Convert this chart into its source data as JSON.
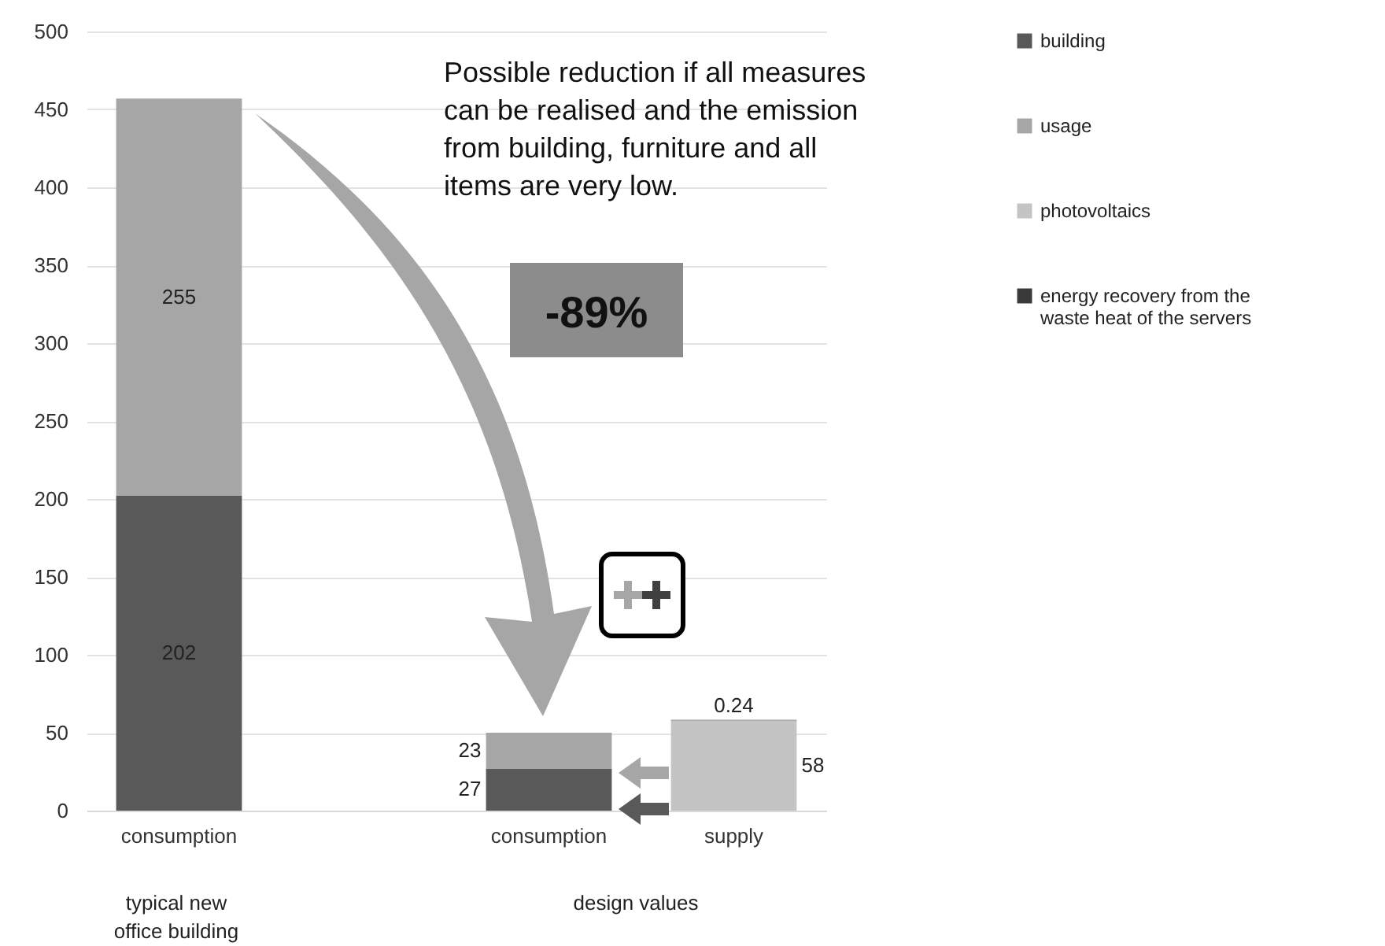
{
  "chart_data": {
    "type": "bar",
    "stacked": true,
    "categories": [
      "consumption",
      null,
      "consumption",
      "supply"
    ],
    "series": [
      {
        "name": "building",
        "color": "#595959",
        "values": [
          202,
          null,
          27,
          null
        ]
      },
      {
        "name": "usage",
        "color": "#a6a6a6",
        "values": [
          255,
          null,
          23,
          null
        ]
      },
      {
        "name": "photovoltaics",
        "color": "#c4c4c4",
        "values": [
          null,
          null,
          null,
          58
        ]
      },
      {
        "name": "energy recovery from the waste heat of the servers",
        "color": "#3a3a3a",
        "values": [
          null,
          null,
          null,
          0.24
        ]
      }
    ],
    "ylim": [
      0,
      500
    ],
    "yticks": [
      0,
      50,
      100,
      150,
      200,
      250,
      300,
      350,
      400,
      450,
      500
    ],
    "grid": "y",
    "legend": "right",
    "data_labels": true,
    "annotations": [
      "Possible reduction if all measures can be realised and the emission from building, furniture and all items are very low.",
      "-89%",
      "typical new office building",
      "design values"
    ]
  }
}
